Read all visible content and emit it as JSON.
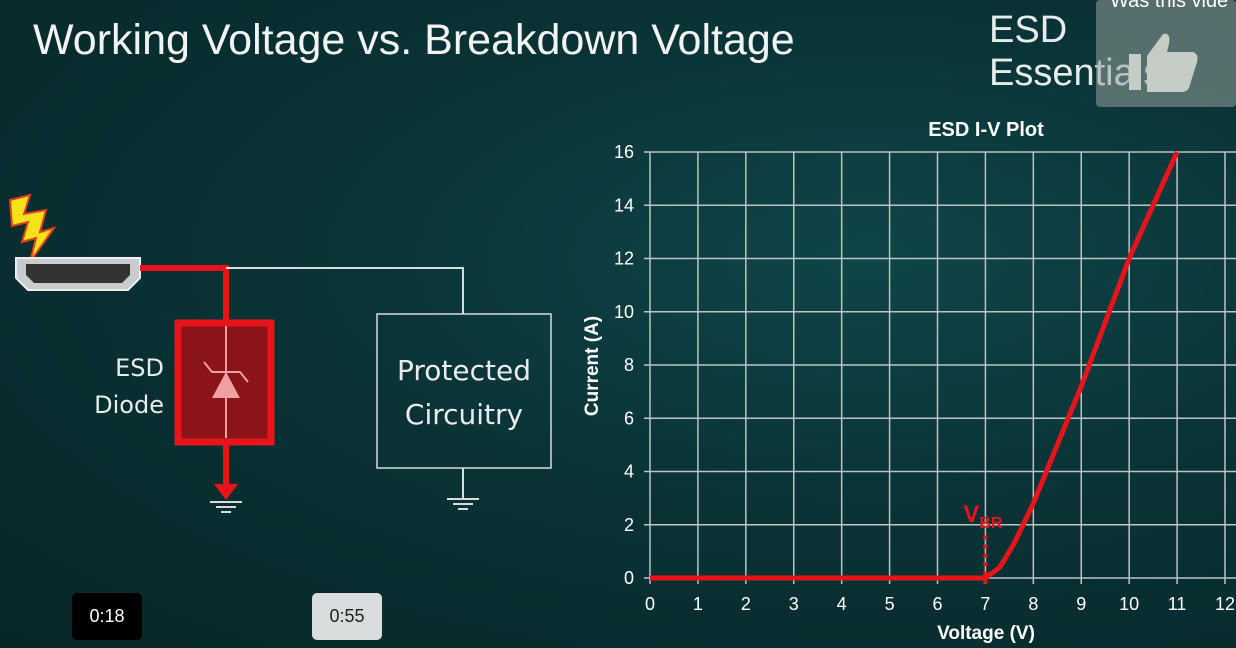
{
  "slide": {
    "title": "Working Voltage vs. Breakdown Voltage",
    "brand": "ESD Essentials",
    "diagram": {
      "diode_label_line1": "ESD",
      "diode_label_line2": "Diode",
      "circuit_label_line1": "Protected",
      "circuit_label_line2": "Circuitry",
      "icons": [
        "lightning-icon",
        "hdmi-connector-icon",
        "tvs-diode-icon",
        "ground-icon"
      ]
    }
  },
  "video": {
    "current_time": "0:18",
    "hover_time": "0:55",
    "feedback_prompt": "Was this vide",
    "feedback_icon": "thumbs-up-icon"
  },
  "colors": {
    "curve": "#e8141b",
    "grid": "#b9c4c4",
    "background": "#0a3336"
  },
  "chart_data": {
    "type": "line",
    "title": "ESD I-V Plot",
    "xlabel": "Voltage (V)",
    "ylabel": "Current (A)",
    "xlim": [
      0,
      12
    ],
    "ylim": [
      0,
      16
    ],
    "xticks": [
      "0",
      "1",
      "2",
      "3",
      "4",
      "5",
      "6",
      "7",
      "8",
      "9",
      "10",
      "11",
      "12"
    ],
    "yticks": [
      "0",
      "2",
      "4",
      "6",
      "8",
      "10",
      "12",
      "14",
      "16"
    ],
    "grid": true,
    "series": [
      {
        "x": [
          0,
          7,
          7.3,
          7.6,
          8,
          9,
          10,
          11
        ],
        "y": [
          0,
          0,
          0.4,
          1.3,
          2.8,
          7.2,
          12,
          16
        ]
      }
    ],
    "annotation": {
      "label": "V",
      "subscript": "BR",
      "x": 7
    }
  }
}
